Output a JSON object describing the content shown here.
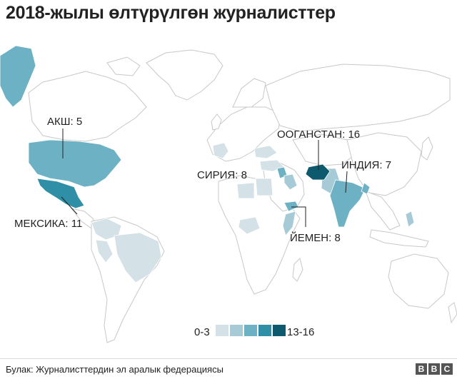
{
  "title": "2018-жылы өлтүрүлгөн журналисттер",
  "colors": {
    "land": "#ffffff",
    "border": "#c8c8c8",
    "bin1": "#d4e1e6",
    "bin2": "#a6cbd6",
    "bin3": "#6db2c4",
    "bin4": "#2e8fa6",
    "bin5": "#0d5a6e",
    "leader": "#222222"
  },
  "countries": [
    {
      "name": "АКШ",
      "value": "5",
      "label": "АКШ: 5"
    },
    {
      "name": "МЕКСИКА",
      "value": "11",
      "label": "МЕКСИКА: 11"
    },
    {
      "name": "СИРИЯ",
      "value": "8",
      "label": "СИРИЯ: 8"
    },
    {
      "name": "ООГАНСТАН",
      "value": "16",
      "label": "ООГАНСТАН: 16"
    },
    {
      "name": "ИНДИЯ",
      "value": "7",
      "label": "ИНДИЯ: 7"
    },
    {
      "name": "ЙЕМЕН",
      "value": "8",
      "label": "ЙЕМЕН: 8"
    }
  ],
  "legend": {
    "min_label": "0-3",
    "max_label": "13-16"
  },
  "footer": {
    "source": "Булак: Журналисттердин эл аралык федерациясы",
    "logo": [
      "B",
      "B",
      "C"
    ]
  }
}
